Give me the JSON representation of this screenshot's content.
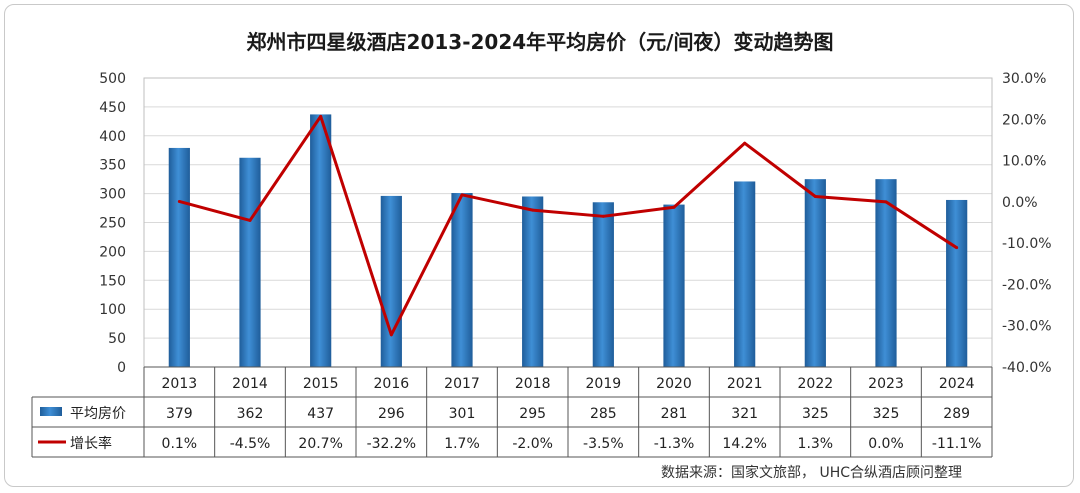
{
  "title": "郑州市四星级酒店2013-2024年平均房价（元/间夜）变动趋势图",
  "source": "数据来源：国家文旅部， UHC合纵酒店顾问整理",
  "chart_data": {
    "type": "bar+line",
    "categories": [
      "2013",
      "2014",
      "2015",
      "2016",
      "2017",
      "2018",
      "2019",
      "2020",
      "2021",
      "2022",
      "2023",
      "2024"
    ],
    "series": [
      {
        "name": "平均房价",
        "type": "bar",
        "axis": "left",
        "values": [
          379,
          362,
          437,
          296,
          301,
          295,
          285,
          281,
          321,
          325,
          325,
          289
        ],
        "labels": [
          "379",
          "362",
          "437",
          "296",
          "301",
          "295",
          "285",
          "281",
          "321",
          "325",
          "325",
          "289"
        ],
        "color": "#2e75b6"
      },
      {
        "name": "增长率",
        "type": "line",
        "axis": "right",
        "values": [
          0.1,
          -4.5,
          20.7,
          -32.2,
          1.7,
          -2.0,
          -3.5,
          -1.3,
          14.2,
          1.3,
          0.0,
          -11.1
        ],
        "labels": [
          "0.1%",
          "-4.5%",
          "20.7%",
          "-32.2%",
          "1.7%",
          "-2.0%",
          "-3.5%",
          "-1.3%",
          "14.2%",
          "1.3%",
          "0.0%",
          "-11.1%"
        ],
        "color": "#c00000"
      }
    ],
    "left_axis": {
      "ylim": [
        0,
        500
      ],
      "ticks": [
        "0",
        "50",
        "100",
        "150",
        "200",
        "250",
        "300",
        "350",
        "400",
        "450",
        "500"
      ]
    },
    "right_axis": {
      "ylim": [
        -40,
        30
      ],
      "ticks": [
        "-40.0%",
        "-30.0%",
        "-20.0%",
        "-10.0%",
        "0.0%",
        "10.0%",
        "20.0%",
        "30.0%"
      ]
    },
    "grid": true,
    "legend": "data-table-left"
  }
}
